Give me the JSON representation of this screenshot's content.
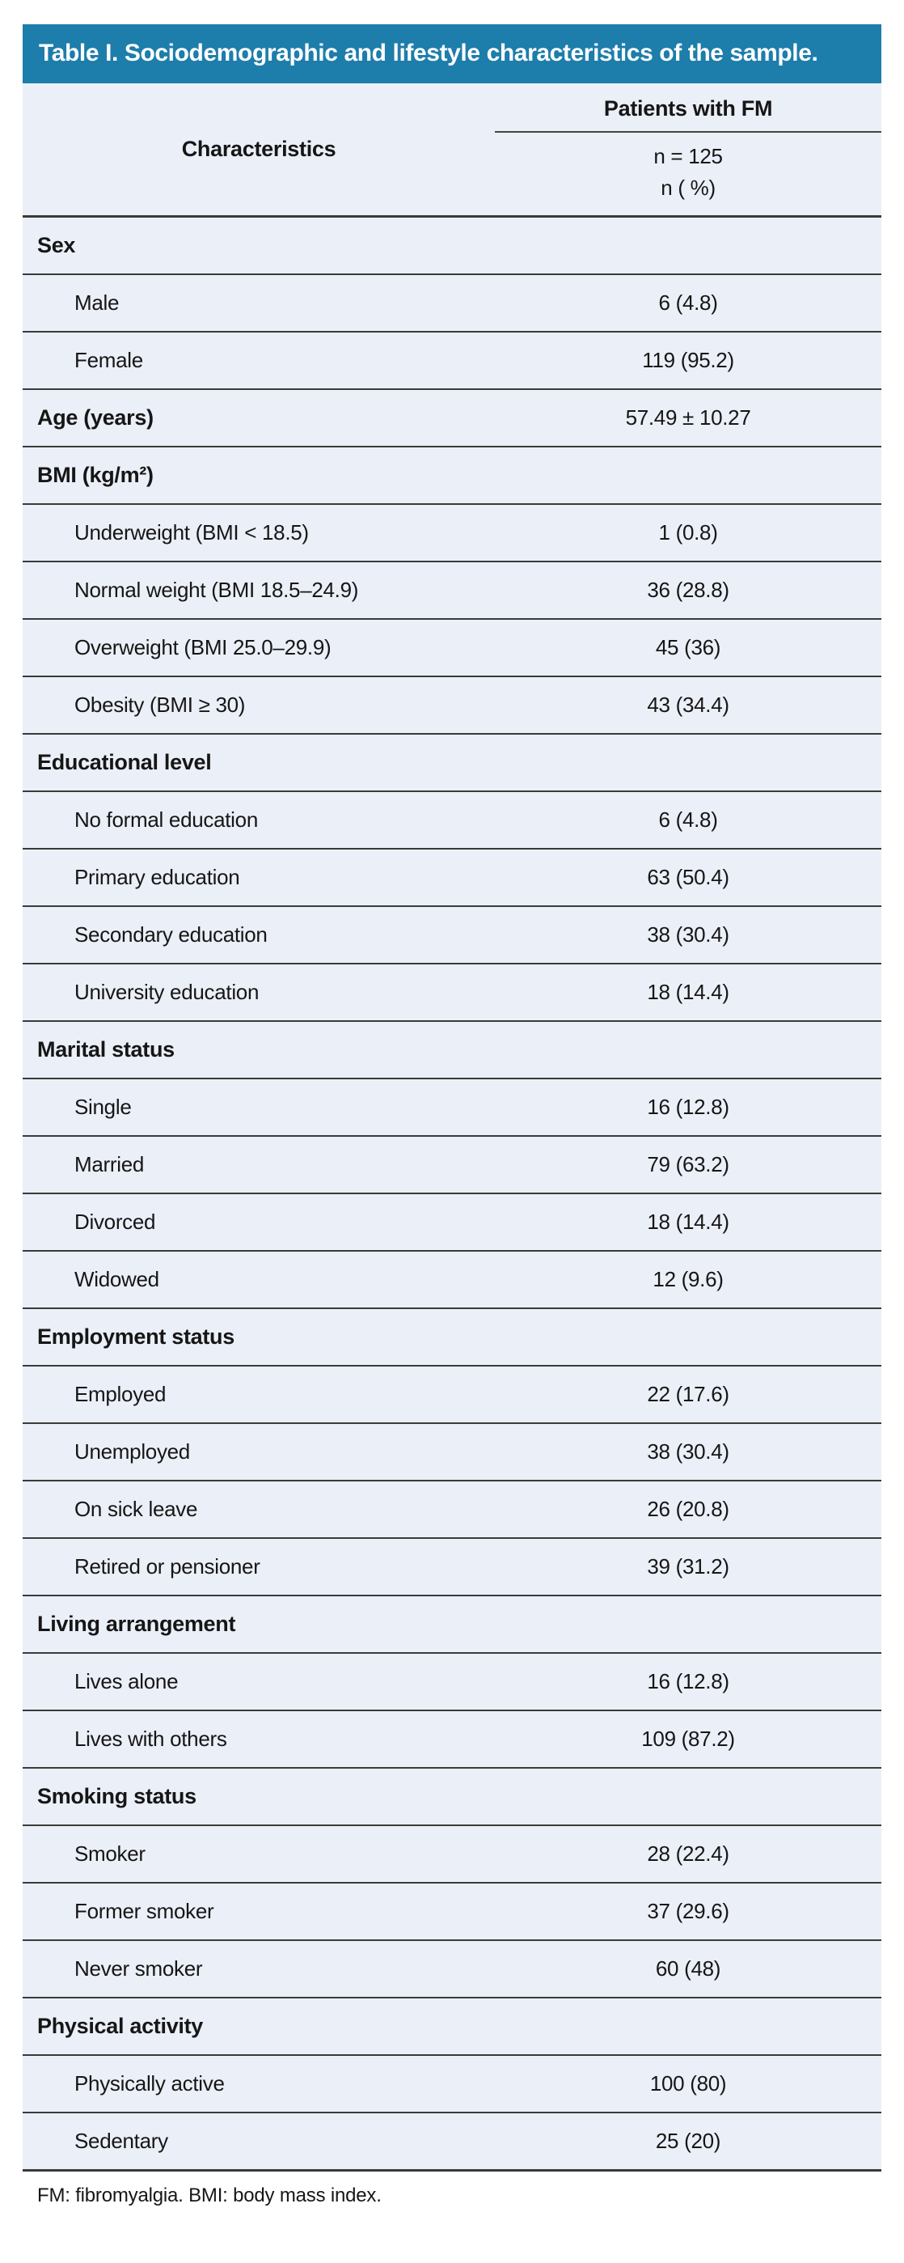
{
  "table": {
    "title": "Table I. Sociodemographic and lifestyle characteristics of the sample.",
    "header": {
      "characteristics": "Characteristics",
      "group": "Patients with FM",
      "n_line": "n = 125",
      "pct_line": "n ( %)"
    },
    "sections": [
      {
        "label": "Sex",
        "value": "",
        "items": [
          {
            "label": "Male",
            "value": "6 (4.8)"
          },
          {
            "label": "Female",
            "value": "119 (95.2)"
          }
        ]
      },
      {
        "label": "Age (years)",
        "value": "57.49 ± 10.27",
        "items": []
      },
      {
        "label": "BMI (kg/m²)",
        "value": "",
        "items": [
          {
            "label": "Underweight (BMI < 18.5)",
            "value": "1 (0.8)"
          },
          {
            "label": "Normal weight (BMI 18.5–24.9)",
            "value": "36 (28.8)"
          },
          {
            "label": "Overweight (BMI 25.0–29.9)",
            "value": "45 (36)"
          },
          {
            "label": "Obesity (BMI ≥ 30)",
            "value": "43 (34.4)"
          }
        ]
      },
      {
        "label": "Educational level",
        "value": "",
        "items": [
          {
            "label": "No formal education",
            "value": "6 (4.8)"
          },
          {
            "label": "Primary education",
            "value": "63 (50.4)"
          },
          {
            "label": "Secondary education",
            "value": "38 (30.4)"
          },
          {
            "label": "University education",
            "value": "18 (14.4)"
          }
        ]
      },
      {
        "label": "Marital status",
        "value": "",
        "items": [
          {
            "label": "Single",
            "value": "16 (12.8)"
          },
          {
            "label": "Married",
            "value": "79 (63.2)"
          },
          {
            "label": "Divorced",
            "value": "18 (14.4)"
          },
          {
            "label": "Widowed",
            "value": "12 (9.6)"
          }
        ]
      },
      {
        "label": "Employment status",
        "value": "",
        "items": [
          {
            "label": "Employed",
            "value": "22 (17.6)"
          },
          {
            "label": "Unemployed",
            "value": "38 (30.4)"
          },
          {
            "label": "On sick leave",
            "value": "26 (20.8)"
          },
          {
            "label": "Retired or pensioner",
            "value": "39 (31.2)"
          }
        ]
      },
      {
        "label": "Living arrangement",
        "value": "",
        "items": [
          {
            "label": "Lives alone",
            "value": "16 (12.8)"
          },
          {
            "label": "Lives with others",
            "value": "109 (87.2)"
          }
        ]
      },
      {
        "label": "Smoking status",
        "value": "",
        "items": [
          {
            "label": "Smoker",
            "value": "28 (22.4)"
          },
          {
            "label": "Former smoker",
            "value": "37 (29.6)"
          },
          {
            "label": "Never smoker",
            "value": "60 (48)"
          }
        ]
      },
      {
        "label": "Physical activity",
        "value": "",
        "items": [
          {
            "label": "Physically active",
            "value": "100 (80)"
          },
          {
            "label": "Sedentary",
            "value": "25 (20)"
          }
        ]
      }
    ],
    "footnote": "FM: fibromyalgia. BMI: body mass index."
  },
  "colors": {
    "title_bar": "#1d7dab",
    "row_bg": "#ebeff7",
    "rule": "#3a3a3a",
    "text": "#161616"
  }
}
